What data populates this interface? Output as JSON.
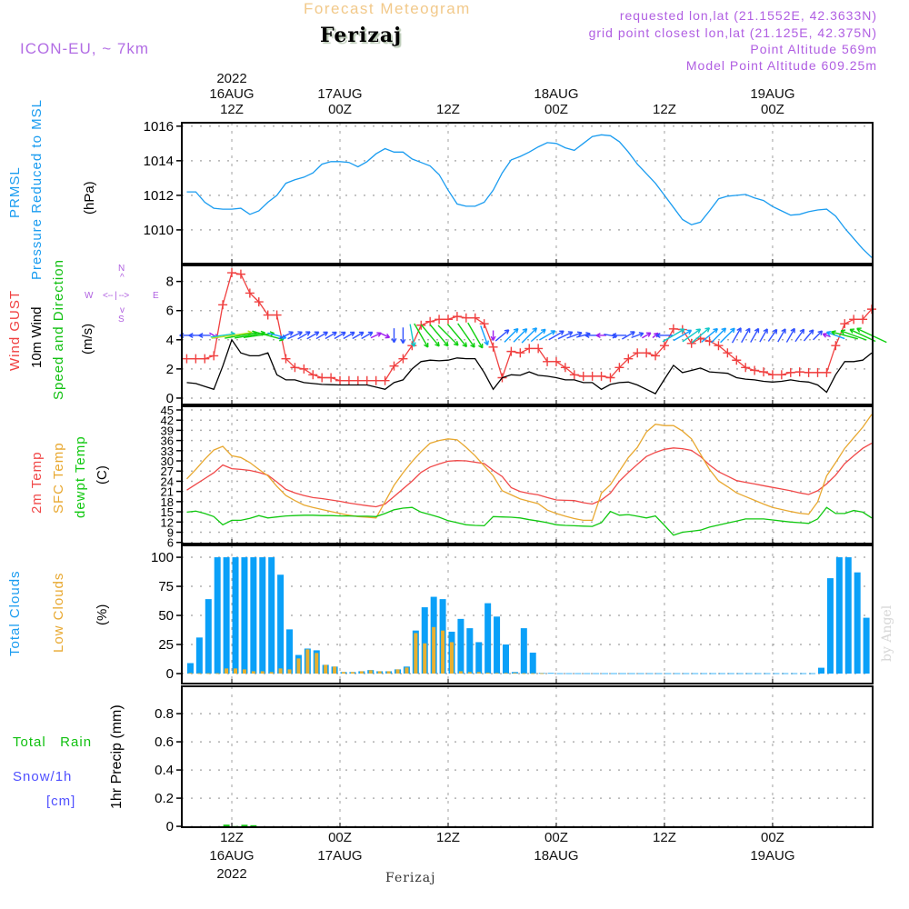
{
  "header": {
    "title": "Forecast Meteogram",
    "location": "Ferizaj",
    "model": "ICON-EU, ~ 7km",
    "requested": "requested lon,lat (21.1552E, 42.3633N)",
    "grid_point": "grid point closest lon,lat (21.125E, 42.375N)",
    "point_altitude": "Point Altitude 569m",
    "model_altitude": "Model Point Altitude 609.25m"
  },
  "time_axis": {
    "unit": "hours since 16AUG2022 00Z",
    "xlim": [
      6.45,
      83.1
    ],
    "top_labels": [
      {
        "hour": 12,
        "lines": [
          "2022",
          "16AUG",
          "12Z"
        ]
      },
      {
        "hour": 24,
        "lines": [
          "17AUG",
          "00Z"
        ]
      },
      {
        "hour": 36,
        "lines": [
          "12Z"
        ]
      },
      {
        "hour": 48,
        "lines": [
          "18AUG",
          "00Z"
        ]
      },
      {
        "hour": 60,
        "lines": [
          "12Z"
        ]
      },
      {
        "hour": 72,
        "lines": [
          "19AUG",
          "00Z"
        ]
      }
    ],
    "bottom_labels": [
      {
        "hour": 12,
        "lines": [
          "12Z",
          "16AUG",
          "2022"
        ]
      },
      {
        "hour": 24,
        "lines": [
          "00Z",
          "17AUG"
        ]
      },
      {
        "hour": 36,
        "lines": [
          "12Z"
        ]
      },
      {
        "hour": 48,
        "lines": [
          "00Z",
          "18AUG"
        ]
      },
      {
        "hour": 60,
        "lines": [
          "12Z"
        ]
      },
      {
        "hour": 72,
        "lines": [
          "00Z",
          "19AUG"
        ]
      }
    ],
    "footer": "Ferizaj"
  },
  "labels": {
    "pressure": {
      "l1": "PRMSL",
      "l2": "Pressure Reduced to MSL",
      "unit": "(hPa)"
    },
    "wind": {
      "l1": "Wind GUST",
      "l2": "10m Wind",
      "l3": "Speed and Direction",
      "unit": "(m/s)",
      "compass": {
        "n": "N",
        "s": "S",
        "e": "E",
        "w": "W",
        "ns_arrow": "^",
        "sn_arrow": "v",
        "we": "<-- | -->"
      }
    },
    "temp": {
      "l1": "2m Temp",
      "l2": "SFC Temp",
      "l3": "dewpt Temp",
      "unit": "(C)"
    },
    "clouds": {
      "l1": "Total Clouds",
      "l2": "Low Clouds",
      "unit": "(%)"
    },
    "precip": {
      "rain": "Total   Rain",
      "snow": "Snow/1h",
      "snow_unit": "[cm]",
      "unit": "1hr Precip (mm)"
    },
    "watermark": "by Angel"
  },
  "colors": {
    "pressure": "#1a9cf0",
    "gust": "#f04040",
    "wind": "#000000",
    "t2m": "#f04848",
    "tsfc": "#e8a830",
    "dew": "#10c810",
    "total_clouds": "#0aa0f8",
    "low_clouds": "#e8b030",
    "rain": "#10c010",
    "snow": "#5050ff",
    "label_purple": "#b060e0"
  },
  "chart_data": [
    {
      "id": "pressure",
      "type": "line",
      "ylabel": "PRMSL Pressure Reduced to MSL (hPa)",
      "ylim": [
        1008.05,
        1016.2
      ],
      "yticks": [
        1010,
        1012,
        1014,
        1016
      ],
      "x_start": 7,
      "x_step": 1,
      "grid": true,
      "series": [
        {
          "name": "PRMSL",
          "values": [
            1012.2,
            1012.2,
            1011.6,
            1011.25,
            1011.2,
            1011.2,
            1011.25,
            1010.9,
            1011.1,
            1011.6,
            1012.0,
            1012.7,
            1012.9,
            1013.05,
            1013.3,
            1013.8,
            1013.95,
            1013.95,
            1013.9,
            1013.65,
            1013.95,
            1014.4,
            1014.7,
            1014.5,
            1014.5,
            1014.1,
            1013.9,
            1013.7,
            1013.2,
            1012.3,
            1011.5,
            1011.37,
            1011.37,
            1011.6,
            1012.3,
            1013.3,
            1014.05,
            1014.25,
            1014.5,
            1014.8,
            1015.05,
            1015.0,
            1014.75,
            1014.6,
            1015.0,
            1015.4,
            1015.5,
            1015.45,
            1015.1,
            1014.5,
            1013.8,
            1013.25,
            1012.7,
            1012.0,
            1011.3,
            1010.6,
            1010.3,
            1010.45,
            1011.1,
            1011.8,
            1011.95,
            1012.0,
            1012.05,
            1011.85,
            1011.7,
            1011.35,
            1011.1,
            1010.85,
            1010.9,
            1011.05,
            1011.15,
            1011.2,
            1010.8,
            1010.1,
            1009.5,
            1008.9,
            1008.4
          ]
        }
      ]
    },
    {
      "id": "wind",
      "type": "line",
      "ylabel": "Wind GUST / 10m Wind Speed and Direction (m/s)",
      "ylim": [
        -0.44,
        9.1
      ],
      "yticks": [
        0,
        2,
        4,
        6,
        8
      ],
      "x_start": 7,
      "x_step": 1,
      "grid": true,
      "series": [
        {
          "name": "Wind GUST",
          "marker": "+",
          "values": [
            2.7,
            2.7,
            2.7,
            2.9,
            6.4,
            8.6,
            8.5,
            7.2,
            6.6,
            5.7,
            5.7,
            2.7,
            2.1,
            2.0,
            1.6,
            1.4,
            1.4,
            1.2,
            1.2,
            1.2,
            1.2,
            1.2,
            1.2,
            2.2,
            2.7,
            3.6,
            5.0,
            5.25,
            5.4,
            5.4,
            5.6,
            5.5,
            5.5,
            5.1,
            3.5,
            1.4,
            3.2,
            3.1,
            3.4,
            3.4,
            2.5,
            2.5,
            2.1,
            1.6,
            1.5,
            1.5,
            1.5,
            1.4,
            2.1,
            2.7,
            3.1,
            3.1,
            2.9,
            3.6,
            4.75,
            4.7,
            3.75,
            4.1,
            3.9,
            3.6,
            3.1,
            2.6,
            2.1,
            1.9,
            1.8,
            1.6,
            1.6,
            1.75,
            1.8,
            1.75,
            1.75,
            1.75,
            3.6,
            5.1,
            5.4,
            5.4,
            6.1
          ]
        },
        {
          "name": "10m Wind",
          "values": [
            1.06,
            1.0,
            0.8,
            0.6,
            2.2,
            4.0,
            3.1,
            2.9,
            2.9,
            3.1,
            1.6,
            1.25,
            1.25,
            1.06,
            1.0,
            0.94,
            0.92,
            0.9,
            0.9,
            0.9,
            0.9,
            0.75,
            0.6,
            1.06,
            1.25,
            2.0,
            2.5,
            2.6,
            2.56,
            2.6,
            2.75,
            2.7,
            2.7,
            1.75,
            0.6,
            1.4,
            1.6,
            1.56,
            1.8,
            1.56,
            1.5,
            1.4,
            1.25,
            1.25,
            1.06,
            1.06,
            0.6,
            0.94,
            1.06,
            1.1,
            0.9,
            0.6,
            0.3,
            1.3,
            2.25,
            1.75,
            1.9,
            2.06,
            1.8,
            1.75,
            1.7,
            1.4,
            1.3,
            1.25,
            1.15,
            1.1,
            1.15,
            1.25,
            1.15,
            1.1,
            0.9,
            0.4,
            1.6,
            2.5,
            2.5,
            2.6,
            3.1
          ]
        }
      ],
      "wind_direction_toward_deg": [
        180,
        180,
        180,
        -30,
        8,
        8,
        10,
        10,
        8,
        -15,
        -15,
        25,
        25,
        30,
        30,
        30,
        30,
        30,
        30,
        30,
        30,
        25,
        -25,
        -90,
        -90,
        -80,
        -60,
        -50,
        -50,
        -45,
        -50,
        -55,
        -60,
        -70,
        -90,
        40,
        45,
        45,
        45,
        40,
        30,
        30,
        25,
        20,
        15,
        180,
        180,
        -10,
        180,
        30,
        20,
        30,
        40,
        180,
        30,
        30,
        35,
        40,
        40,
        45,
        45,
        60,
        60,
        60,
        60,
        55,
        60,
        60,
        55,
        50,
        45,
        160,
        160,
        165,
        160,
        155,
        155
      ]
    },
    {
      "id": "temp",
      "type": "line",
      "ylabel": "2m Temp / SFC Temp / dewpt Temp (C)",
      "ylim": [
        5.65,
        46.07
      ],
      "yticks": [
        6,
        9,
        12,
        15,
        18,
        21,
        24,
        27,
        30,
        33,
        36,
        39,
        42,
        45
      ],
      "x_start": 7,
      "x_step": 1,
      "grid": true,
      "series": [
        {
          "name": "2m Temp",
          "values": [
            21.4,
            23.1,
            24.8,
            26.5,
            28.8,
            27.7,
            27.5,
            27.2,
            26.6,
            25.8,
            23.8,
            21.6,
            20.6,
            19.8,
            19.2,
            18.9,
            18.5,
            18.1,
            17.6,
            17.2,
            16.8,
            16.5,
            17.3,
            19.5,
            21.8,
            24,
            26.6,
            28.2,
            29.1,
            29.9,
            30.1,
            30.0,
            29.6,
            29.2,
            27.2,
            25.4,
            22.1,
            21.0,
            20.4,
            20.0,
            19.2,
            18.5,
            18.4,
            18.3,
            17.7,
            17.3,
            18.5,
            20.5,
            24,
            26.6,
            29,
            31.3,
            32.5,
            33.4,
            33.8,
            33.6,
            33.1,
            31.3,
            28.8,
            26.8,
            25.5,
            24.2,
            23.7,
            23.2,
            22.7,
            22.2,
            21.7,
            21.2,
            20.6,
            20.1,
            21.2,
            23.2,
            25.8,
            29.2,
            31.5,
            33.7,
            35.2
          ]
        },
        {
          "name": "SFC Temp",
          "values": [
            24.7,
            27.5,
            30.5,
            33.2,
            34.3,
            31.5,
            31.0,
            29.5,
            27.5,
            25.6,
            22.5,
            19.8,
            18.3,
            17.0,
            16.3,
            15.7,
            15.1,
            14.5,
            14.0,
            13.6,
            13.4,
            13.2,
            18,
            22.8,
            26.5,
            29.8,
            32.7,
            35.2,
            36.0,
            36.5,
            36.2,
            34,
            31.5,
            28.5,
            25.6,
            21.2,
            20,
            18.8,
            18.1,
            17.4,
            15.5,
            14.5,
            13.7,
            13.0,
            12.5,
            12.5,
            20.5,
            23,
            27,
            31,
            34,
            38.5,
            40.8,
            40.4,
            40.4,
            38.8,
            36.5,
            32,
            27.5,
            24.1,
            22.4,
            20.6,
            19.5,
            18.4,
            17.3,
            16.3,
            15.7,
            15.1,
            14.6,
            14.3,
            17.9,
            25.6,
            29.5,
            33.7,
            36.8,
            39.9,
            43.7
          ]
        },
        {
          "name": "dewpt Temp",
          "values": [
            14.9,
            15.2,
            14.5,
            13.6,
            11.2,
            12.5,
            12.5,
            13.1,
            13.9,
            13.2,
            13.5,
            13.8,
            13.9,
            14.0,
            14.0,
            13.9,
            13.9,
            13.8,
            13.8,
            13.7,
            13.7,
            13.6,
            14.5,
            15.6,
            16.1,
            16.3,
            14.9,
            14.2,
            13.4,
            12.4,
            11.8,
            11.2,
            11.0,
            10.9,
            13.6,
            13.5,
            13.4,
            13.2,
            12.7,
            12.3,
            11.8,
            11.2,
            11.0,
            10.9,
            10.8,
            10.7,
            11.8,
            15.1,
            14.0,
            14.2,
            13.7,
            13.2,
            13.8,
            11,
            8.1,
            9.0,
            9.3,
            9.6,
            10.5,
            11.1,
            11.7,
            12.3,
            12.9,
            12.9,
            12.9,
            12.6,
            12.3,
            12.0,
            11.8,
            11.6,
            12.9,
            16.3,
            14.5,
            14.5,
            15.4,
            14.9,
            13.2
          ]
        }
      ]
    },
    {
      "id": "clouds",
      "type": "bar",
      "ylabel": "Total Clouds / Low Clouds (%)",
      "ylim": [
        -8.6,
        110.2
      ],
      "yticks": [
        0,
        25,
        50,
        75,
        100
      ],
      "x_start": 7,
      "x_step": 1,
      "grid": true,
      "series": [
        {
          "name": "Total Clouds",
          "values": [
            9,
            31,
            64,
            100,
            100,
            100,
            100,
            100,
            100,
            100,
            85,
            38,
            16,
            21.5,
            20,
            7.5,
            6,
            1.3,
            1.3,
            2,
            3,
            2,
            2,
            3.6,
            6,
            37,
            57,
            66,
            64,
            36,
            47,
            39,
            27,
            60.5,
            49,
            25,
            1.3,
            39,
            18,
            0.5,
            0.5,
            0.3,
            0.3,
            0.3,
            0.3,
            0.3,
            0.3,
            0.3,
            0.3,
            0.3,
            0.3,
            0.3,
            0.3,
            0.3,
            0.3,
            0.3,
            0.3,
            0.3,
            0.3,
            0.3,
            0.3,
            0.3,
            0.3,
            0.3,
            0.3,
            0.3,
            0.3,
            0.3,
            0.3,
            0.3,
            5,
            82,
            100,
            100,
            87,
            48,
            0
          ]
        },
        {
          "name": "Low Clouds",
          "values": [
            0.5,
            0.3,
            0.3,
            0.3,
            4.4,
            4.4,
            3.6,
            2,
            2,
            1.3,
            4.4,
            3.6,
            13,
            20.8,
            17.7,
            7.5,
            6,
            1.3,
            1.3,
            2,
            2.9,
            2,
            2,
            3.6,
            5.2,
            34.8,
            26,
            40,
            37,
            27,
            2,
            1.3,
            1.3,
            0.8,
            0.5,
            0.5,
            0.5,
            0.3,
            0.3,
            0.3,
            0,
            0,
            0,
            0,
            0,
            0,
            0,
            0,
            0,
            0,
            0,
            0,
            0,
            0,
            0,
            0,
            0,
            0,
            0,
            0,
            0,
            0,
            0,
            0,
            0,
            0,
            0,
            0,
            0,
            0,
            0,
            0,
            0,
            0,
            0,
            0,
            0
          ]
        }
      ]
    },
    {
      "id": "precip",
      "type": "bar",
      "ylabel": "1hr Precip (mm)",
      "ylim": [
        -0.006,
        0.994
      ],
      "yticks": [
        0,
        0.2,
        0.4,
        0.6,
        0.8
      ],
      "x_start": 11,
      "x_step": 1,
      "grid": true,
      "series": [
        {
          "name": "Total Rain",
          "values": [
            0.012,
            0.002,
            0.011,
            0.008
          ]
        },
        {
          "name": "Snow/1h",
          "values": [
            0,
            0,
            0,
            0
          ]
        }
      ]
    }
  ]
}
